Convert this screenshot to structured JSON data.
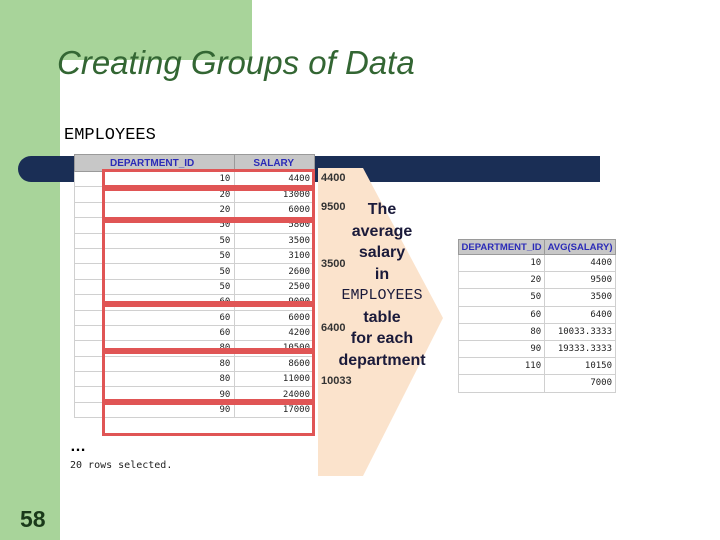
{
  "slide": {
    "title": "Creating Groups of Data",
    "table_label": "EMPLOYEES",
    "slide_number": "58",
    "ellipsis": "…",
    "rows_selected": "20 rows selected."
  },
  "employees_table": {
    "headers": [
      "DEPARTMENT_ID",
      "SALARY"
    ],
    "rows": [
      [
        "10",
        "4400"
      ],
      [
        "20",
        "13000"
      ],
      [
        "20",
        "6000"
      ],
      [
        "50",
        "5800"
      ],
      [
        "50",
        "3500"
      ],
      [
        "50",
        "3100"
      ],
      [
        "50",
        "2600"
      ],
      [
        "50",
        "2500"
      ],
      [
        "60",
        "9000"
      ],
      [
        "60",
        "6000"
      ],
      [
        "60",
        "4200"
      ],
      [
        "80",
        "10500"
      ],
      [
        "80",
        "8600"
      ],
      [
        "80",
        "11000"
      ],
      [
        "90",
        "24000"
      ],
      [
        "90",
        "17000"
      ]
    ]
  },
  "averages": [
    "4400",
    "9500",
    "3500",
    "6400",
    "10033"
  ],
  "callout": {
    "line1": "The",
    "line2": "average",
    "line3": "salary",
    "line4": "in",
    "line5": "EMPLOYEES",
    "line6": "table",
    "line7": "for each",
    "line8": "department"
  },
  "result_table": {
    "headers": [
      "DEPARTMENT_ID",
      "AVG(SALARY)"
    ],
    "rows": [
      [
        "10",
        "4400"
      ],
      [
        "20",
        "9500"
      ],
      [
        "50",
        "3500"
      ],
      [
        "60",
        "6400"
      ],
      [
        "80",
        "10033.3333"
      ],
      [
        "90",
        "19333.3333"
      ],
      [
        "110",
        "10150"
      ],
      [
        "",
        "7000"
      ]
    ]
  },
  "colors": {
    "green_accent": "#a8d49a",
    "navy_bar": "#1a2e55",
    "highlight_red": "#e05555",
    "arrow_fill": "#fbe3cc",
    "header_text_blue": "#2b2bb8"
  }
}
